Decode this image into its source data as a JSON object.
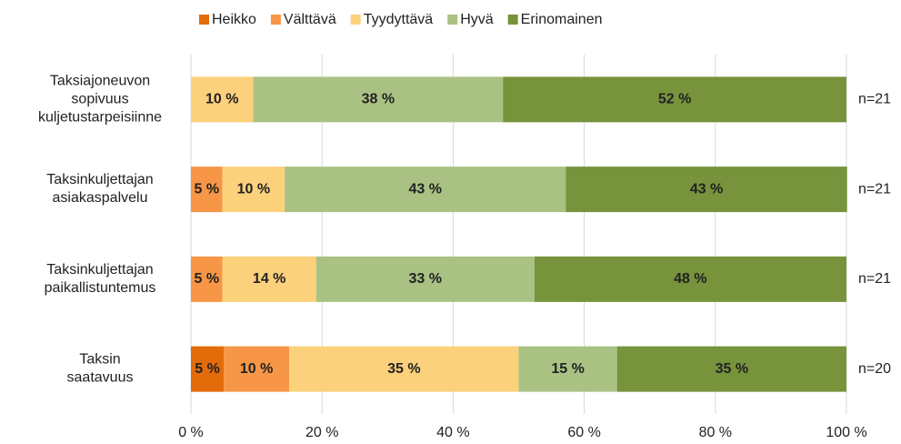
{
  "chart_data": {
    "type": "stacked-barh",
    "categories": [
      "Taksiajoneuvon sopivuus kuljetustarpeisiinne",
      "Taksinkuljettajan asiakaspalvelu",
      "Taksinkuljettajan paikallistuntemus",
      "Taksin saatavuus"
    ],
    "n_labels": [
      "n=21",
      "n=21",
      "n=21",
      "n=20"
    ],
    "series": [
      {
        "name": "Heikko",
        "color": "#e36c0a",
        "values": [
          0,
          0,
          0,
          5
        ],
        "value_labels": [
          null,
          null,
          null,
          "5 %"
        ]
      },
      {
        "name": "Välttävä",
        "color": "#f79646",
        "values": [
          0,
          4.8,
          4.8,
          10
        ],
        "value_labels": [
          null,
          "5 %",
          "5 %",
          "10 %"
        ]
      },
      {
        "name": "Tyydyttävä",
        "color": "#fcd17c",
        "values": [
          9.5,
          9.5,
          14.3,
          35
        ],
        "value_labels": [
          "10 %",
          "10 %",
          "14 %",
          "35 %"
        ]
      },
      {
        "name": "Hyvä",
        "color": "#a9c283",
        "values": [
          38.1,
          42.9,
          33.3,
          15
        ],
        "value_labels": [
          "38 %",
          "43 %",
          "33 %",
          "15 %"
        ]
      },
      {
        "name": "Erinomainen",
        "color": "#77933c",
        "values": [
          52.4,
          42.9,
          47.6,
          35
        ],
        "value_labels": [
          "52 %",
          "43 %",
          "48 %",
          "35 %"
        ]
      }
    ],
    "xlim": [
      0,
      100
    ],
    "xticks": [
      {
        "value": 0,
        "label": "0 %"
      },
      {
        "value": 20,
        "label": "20 %"
      },
      {
        "value": 40,
        "label": "40 %"
      },
      {
        "value": 60,
        "label": "60 %"
      },
      {
        "value": 80,
        "label": "80 %"
      },
      {
        "value": 100,
        "label": "100 %"
      }
    ],
    "grid": true,
    "legend": "top"
  }
}
